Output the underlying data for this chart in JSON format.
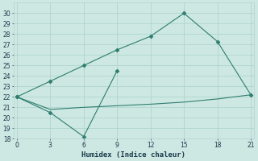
{
  "line1_x": [
    0,
    3,
    6,
    9,
    12,
    15,
    18,
    21
  ],
  "line1_y": [
    22,
    23.5,
    25,
    26.5,
    27.8,
    30,
    27.3,
    22.2
  ],
  "line2_x": [
    0,
    3,
    6,
    9
  ],
  "line2_y": [
    22,
    20.5,
    18.2,
    24.5
  ],
  "line3_x": [
    0,
    3,
    6,
    9,
    12,
    15,
    18,
    21
  ],
  "line3_y": [
    22.0,
    20.8,
    21.0,
    21.15,
    21.3,
    21.5,
    21.8,
    22.2
  ],
  "line_color": "#2e7d6e",
  "bg_color": "#cde8e3",
  "grid_color": "#b0d4ce",
  "xlabel": "Humidex (Indice chaleur)",
  "ylim": [
    18,
    31
  ],
  "xlim": [
    -0.3,
    21.3
  ],
  "yticks": [
    18,
    19,
    20,
    21,
    22,
    23,
    24,
    25,
    26,
    27,
    28,
    29,
    30
  ],
  "xticks": [
    0,
    3,
    6,
    9,
    12,
    15,
    18,
    21
  ],
  "font_color": "#1a3a4a",
  "marker_size": 2.5
}
